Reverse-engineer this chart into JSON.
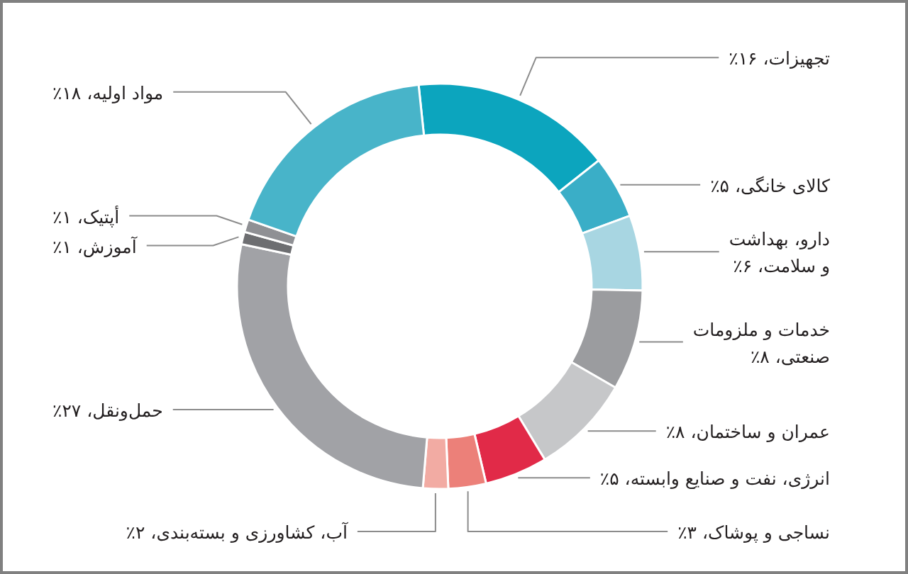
{
  "chart_data": {
    "type": "donut",
    "categories": [
      "تجهیزات",
      "کالای خانگی",
      "دارو، بهداشت\nو سلامت",
      "خدمات و ملزومات\nصنعتی",
      "عمران و ساختمان",
      "انرژی، نفت و صنایع وابسته",
      "نساجی و پوشاک",
      "آب، کشاورزی و بسته‌بندی",
      "حمل‌ونقل",
      "آموزش",
      "أپتیک",
      "مواد اولیه"
    ],
    "values": [
      16,
      5,
      6,
      8,
      8,
      5,
      3,
      2,
      27,
      1,
      1,
      18
    ],
    "colors": [
      "#0ca5be",
      "#3aaec7",
      "#a8d6e2",
      "#9b9c9f",
      "#c6c7c9",
      "#e12a48",
      "#ec8079",
      "#f2aba3",
      "#a1a2a6",
      "#6d6e71",
      "#8f9094",
      "#48b4c9"
    ],
    "value_labels": [
      "۱۶٪",
      "۵٪",
      "۶٪",
      "۸٪",
      "۸٪",
      "۵٪",
      "۳٪",
      "۲٪",
      "۲۷٪",
      "۱٪",
      "۱٪",
      "۱۸٪"
    ]
  }
}
